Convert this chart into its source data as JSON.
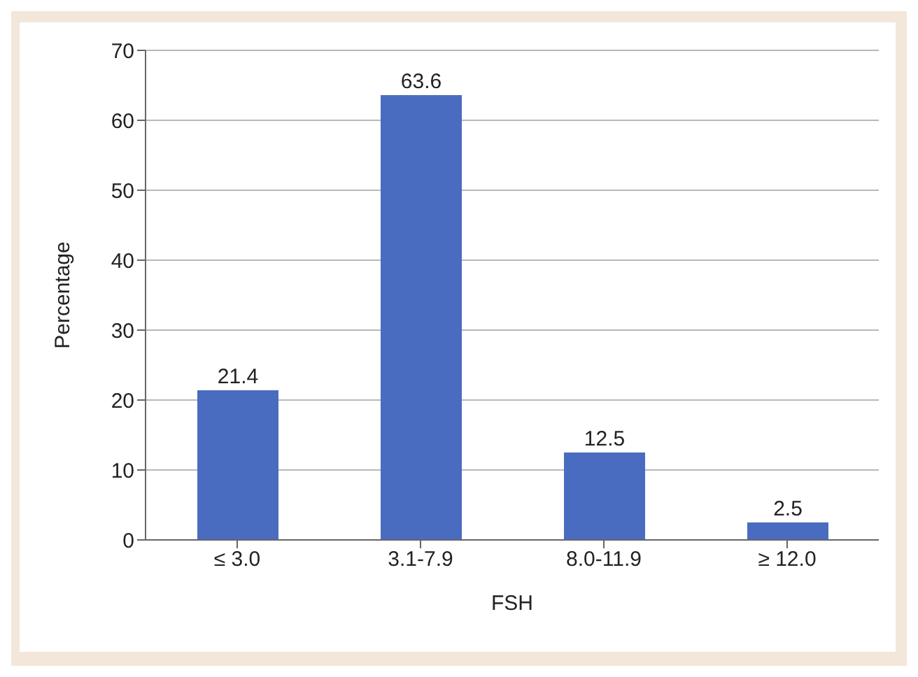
{
  "chart_data": {
    "type": "bar",
    "xlabel": "FSH",
    "ylabel": "Percentage",
    "categories": [
      "≤ 3.0",
      "3.1-7.9",
      "8.0-11.9",
      "≥ 12.0"
    ],
    "values": [
      21.4,
      63.6,
      12.5,
      2.5
    ],
    "color": "#4a6cc0",
    "ylim": [
      0,
      70
    ],
    "yticks": [
      0,
      10,
      20,
      30,
      40,
      50,
      60,
      70
    ],
    "grid": "y",
    "data_labels": true
  }
}
